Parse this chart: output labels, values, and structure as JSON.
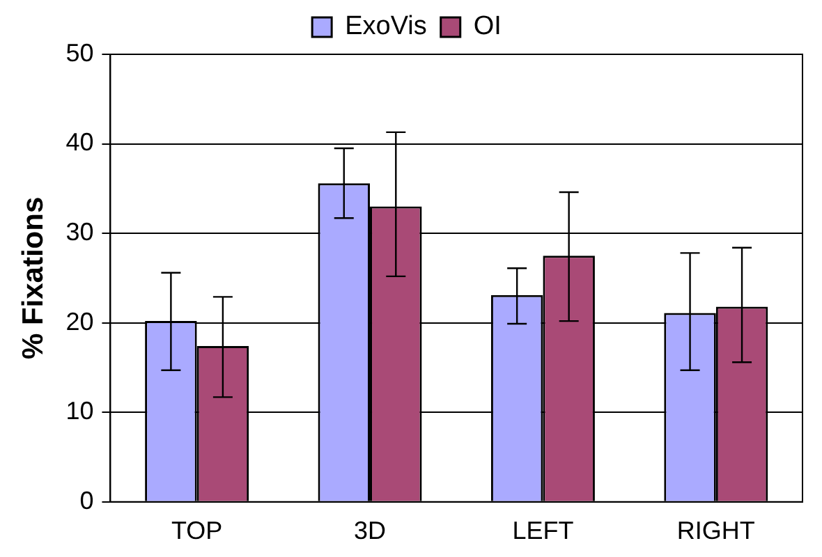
{
  "chart_data": {
    "type": "bar",
    "ylabel": "% Fixations",
    "categories": [
      "TOP",
      "3D",
      "LEFT",
      "RIGHT"
    ],
    "series": [
      {
        "name": "ExoVis",
        "color": "#aaaaff",
        "values": [
          20.2,
          35.6,
          23.1,
          21.1
        ],
        "errors": [
          [
            14.7,
            25.6
          ],
          [
            31.7,
            39.5
          ],
          [
            19.9,
            26.1
          ],
          [
            14.7,
            27.8
          ]
        ]
      },
      {
        "name": "OI",
        "color": "#a94a76",
        "values": [
          17.4,
          33.0,
          27.5,
          21.8
        ],
        "errors": [
          [
            11.7,
            22.9
          ],
          [
            25.2,
            41.3
          ],
          [
            20.2,
            34.6
          ],
          [
            15.6,
            28.4
          ]
        ]
      }
    ],
    "ylim": [
      0,
      50
    ],
    "yticks": [
      0,
      10,
      20,
      30,
      40,
      50
    ],
    "grid": "y",
    "legend": "top"
  }
}
